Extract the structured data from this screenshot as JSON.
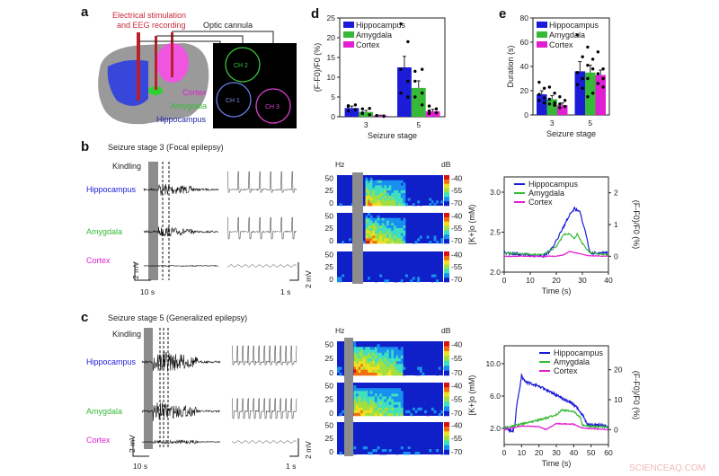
{
  "panels": {
    "a": {
      "label": "a",
      "stim_text1": "Electrical stimulation",
      "stim_text2": "and EEG recording",
      "cannula": "Optic cannula",
      "regions": [
        "Cortex",
        "Amygdala",
        "Hippocampus"
      ],
      "channels": [
        "CH 1",
        "CH 2",
        "CH 3"
      ]
    },
    "b": {
      "label": "b",
      "title": "Seizure stage 3 (Focal epilepsy)",
      "kindling": "Kindling",
      "scale_v": "2 mV",
      "scale_t1": "10 s",
      "scale_t2": "1 s"
    },
    "c": {
      "label": "c",
      "title": "Seizure stage 5 (Generalized epilepsy)",
      "kindling": "Kindling",
      "scale_v": "2 mV",
      "scale_t1": "10 s",
      "scale_t2": "1 s"
    },
    "d": {
      "label": "d"
    },
    "e": {
      "label": "e"
    }
  },
  "regions": {
    "hippocampus": "Hippocampus",
    "amygdala": "Amygdala",
    "cortex": "Cortex"
  },
  "colors": {
    "hippocampus": "#1b1bd8",
    "amygdala": "#36b936",
    "cortex": "#e01ed2",
    "stim": "#c82a3c"
  },
  "spectrogram": {
    "ylabel": "Hz",
    "yticks": [
      "50",
      "25",
      "0"
    ],
    "cbar_label": "dB",
    "cbar_ticks": [
      "-40",
      "-55",
      "-70"
    ]
  },
  "watermark": "SCIENCEAQ.COM",
  "chart_data": [
    {
      "id": "d",
      "type": "bar",
      "title": "",
      "xlabel": "Seizure stage",
      "ylabel": "(F-F0)/F0 (%)",
      "categories": [
        "3",
        "5"
      ],
      "ylim": [
        0,
        25
      ],
      "yticks": [
        "0",
        "5",
        "10",
        "15",
        "20",
        "25"
      ],
      "legend": "top-left",
      "series": [
        {
          "name": "Hippocampus",
          "values": [
            2.2,
            12.5
          ],
          "errors": [
            0.5,
            2.8
          ],
          "points": [
            [
              2.8,
              3.0,
              2.6,
              1.8,
              1.5
            ],
            [
              23.5,
              19,
              12,
              9,
              6,
              5
            ]
          ]
        },
        {
          "name": "Amygdala",
          "values": [
            1.2,
            7.3
          ],
          "errors": [
            0.4,
            1.8
          ],
          "points": [
            [
              2.0,
              2.1,
              1.0,
              0.5,
              0.8
            ],
            [
              11.5,
              12,
              9,
              6,
              5,
              3
            ]
          ]
        },
        {
          "name": "Cortex",
          "values": [
            0.3,
            1.4
          ],
          "errors": [
            0.1,
            0.5
          ],
          "points": [
            [
              0.3,
              0.2,
              0.3,
              0.1
            ],
            [
              2.7,
              2,
              1.5,
              1,
              0.8
            ]
          ]
        }
      ]
    },
    {
      "id": "e",
      "type": "bar",
      "title": "",
      "xlabel": "Seizure stage",
      "ylabel": "Duration (s)",
      "categories": [
        "3",
        "5"
      ],
      "ylim": [
        0,
        80
      ],
      "yticks": [
        "0",
        "20",
        "40",
        "60",
        "80"
      ],
      "legend": "top-left",
      "series": [
        {
          "name": "Hippocampus",
          "values": [
            17,
            36
          ],
          "errors": [
            3,
            8
          ],
          "points": [
            [
              27,
              22,
              17,
              14,
              12,
              10
            ],
            [
              66,
              48,
              35,
              30,
              25,
              22
            ]
          ]
        },
        {
          "name": "Amygdala",
          "values": [
            13,
            35
          ],
          "errors": [
            3,
            6
          ],
          "points": [
            [
              23,
              18,
              13,
              10,
              9,
              8
            ],
            [
              56,
              46,
              41,
              38,
              30,
              18,
              15
            ]
          ]
        },
        {
          "name": "Cortex",
          "values": [
            8,
            33
          ],
          "errors": [
            2,
            4
          ],
          "points": [
            [
              15,
              12,
              9,
              7,
              6
            ],
            [
              52,
              38,
              34,
              30,
              26,
              23
            ]
          ]
        }
      ]
    },
    {
      "id": "b-line",
      "type": "line",
      "xlabel": "Time (s)",
      "ylabel": "[K+]o (mM)",
      "y2label": "(F-F0)/F0 (%)",
      "xlim": [
        0,
        40
      ],
      "ylim": [
        2.0,
        3.2
      ],
      "y2lim": [
        -0.5,
        2.5
      ],
      "xticks": [
        "0",
        "10",
        "20",
        "30",
        "40"
      ],
      "yticks": [
        "2.0",
        "2.5",
        "3.0"
      ],
      "y2ticks": [
        "0",
        "1",
        "2"
      ],
      "legend": "top-left",
      "series": [
        {
          "name": "Hippocampus",
          "x": [
            0,
            15,
            18,
            22,
            25,
            27,
            29,
            31,
            33,
            40
          ],
          "y": [
            0.1,
            0.0,
            0.2,
            0.8,
            1.3,
            1.5,
            1.4,
            0.8,
            0.1,
            0.1
          ]
        },
        {
          "name": "Amygdala",
          "x": [
            0,
            15,
            20,
            23,
            25,
            27,
            28,
            30,
            33,
            40
          ],
          "y": [
            0.1,
            0.05,
            0.3,
            0.7,
            0.7,
            0.55,
            0.7,
            0.4,
            0.1,
            0.05
          ]
        },
        {
          "name": "Cortex",
          "x": [
            0,
            20,
            23,
            25,
            28,
            32,
            40
          ],
          "y": [
            0,
            0,
            0.05,
            0.15,
            0.1,
            0.02,
            0
          ]
        }
      ]
    },
    {
      "id": "c-line",
      "type": "line",
      "xlabel": "Time (s)",
      "ylabel": "[K+]o (mM)",
      "y2label": "(F-F0)/F0 (%)",
      "xlim": [
        0,
        60
      ],
      "ylim": [
        0,
        12
      ],
      "y2lim": [
        -5,
        28
      ],
      "xticks": [
        "0",
        "10",
        "20",
        "30",
        "40",
        "50",
        "60"
      ],
      "yticks": [
        "2.0",
        "6.0",
        "10.0"
      ],
      "y2ticks": [
        "0",
        "10",
        "20"
      ],
      "legend": "top-right",
      "series": [
        {
          "name": "Hippocampus",
          "x": [
            0,
            5,
            6,
            7,
            10,
            12,
            20,
            30,
            40,
            45,
            48,
            55,
            60
          ],
          "y": [
            0.5,
            -0.5,
            1,
            7,
            18,
            16,
            14.5,
            11.5,
            8.5,
            5,
            1.5,
            1.5,
            1
          ]
        },
        {
          "name": "Amygdala",
          "x": [
            0,
            7,
            15,
            25,
            30,
            33,
            40,
            44,
            45,
            50,
            60
          ],
          "y": [
            0.5,
            1.5,
            2.5,
            4,
            5,
            6.5,
            6,
            4,
            1.5,
            1,
            1
          ]
        },
        {
          "name": "Cortex",
          "x": [
            0,
            10,
            20,
            24,
            30,
            40,
            45,
            60
          ],
          "y": [
            0,
            1.2,
            1,
            0,
            2,
            1.8,
            0.5,
            0
          ]
        }
      ]
    }
  ]
}
